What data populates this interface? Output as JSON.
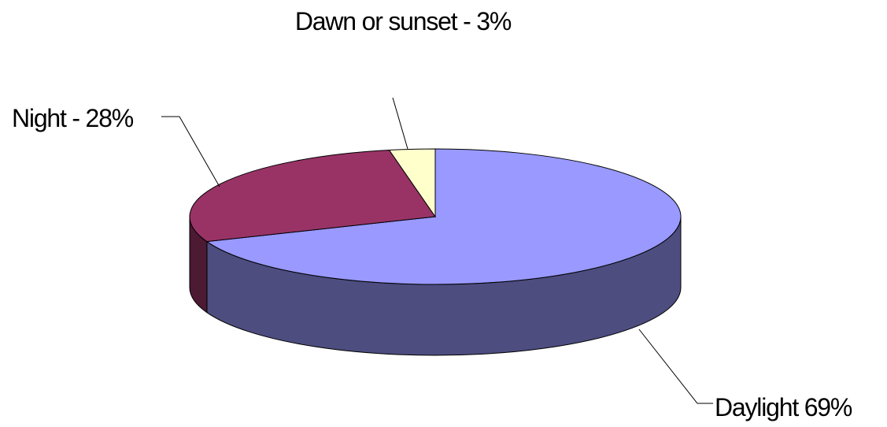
{
  "chart_data": {
    "type": "pie",
    "categories": [
      "Daylight",
      "Night",
      "Dawn or sunset"
    ],
    "values": [
      69,
      28,
      3
    ],
    "value_labels": [
      "Daylight 69%",
      "Night - 28%",
      "Dawn or sunset - 3%"
    ],
    "colors": [
      "#9999ff",
      "#993366",
      "#ffffcc"
    ],
    "three_d": true
  }
}
